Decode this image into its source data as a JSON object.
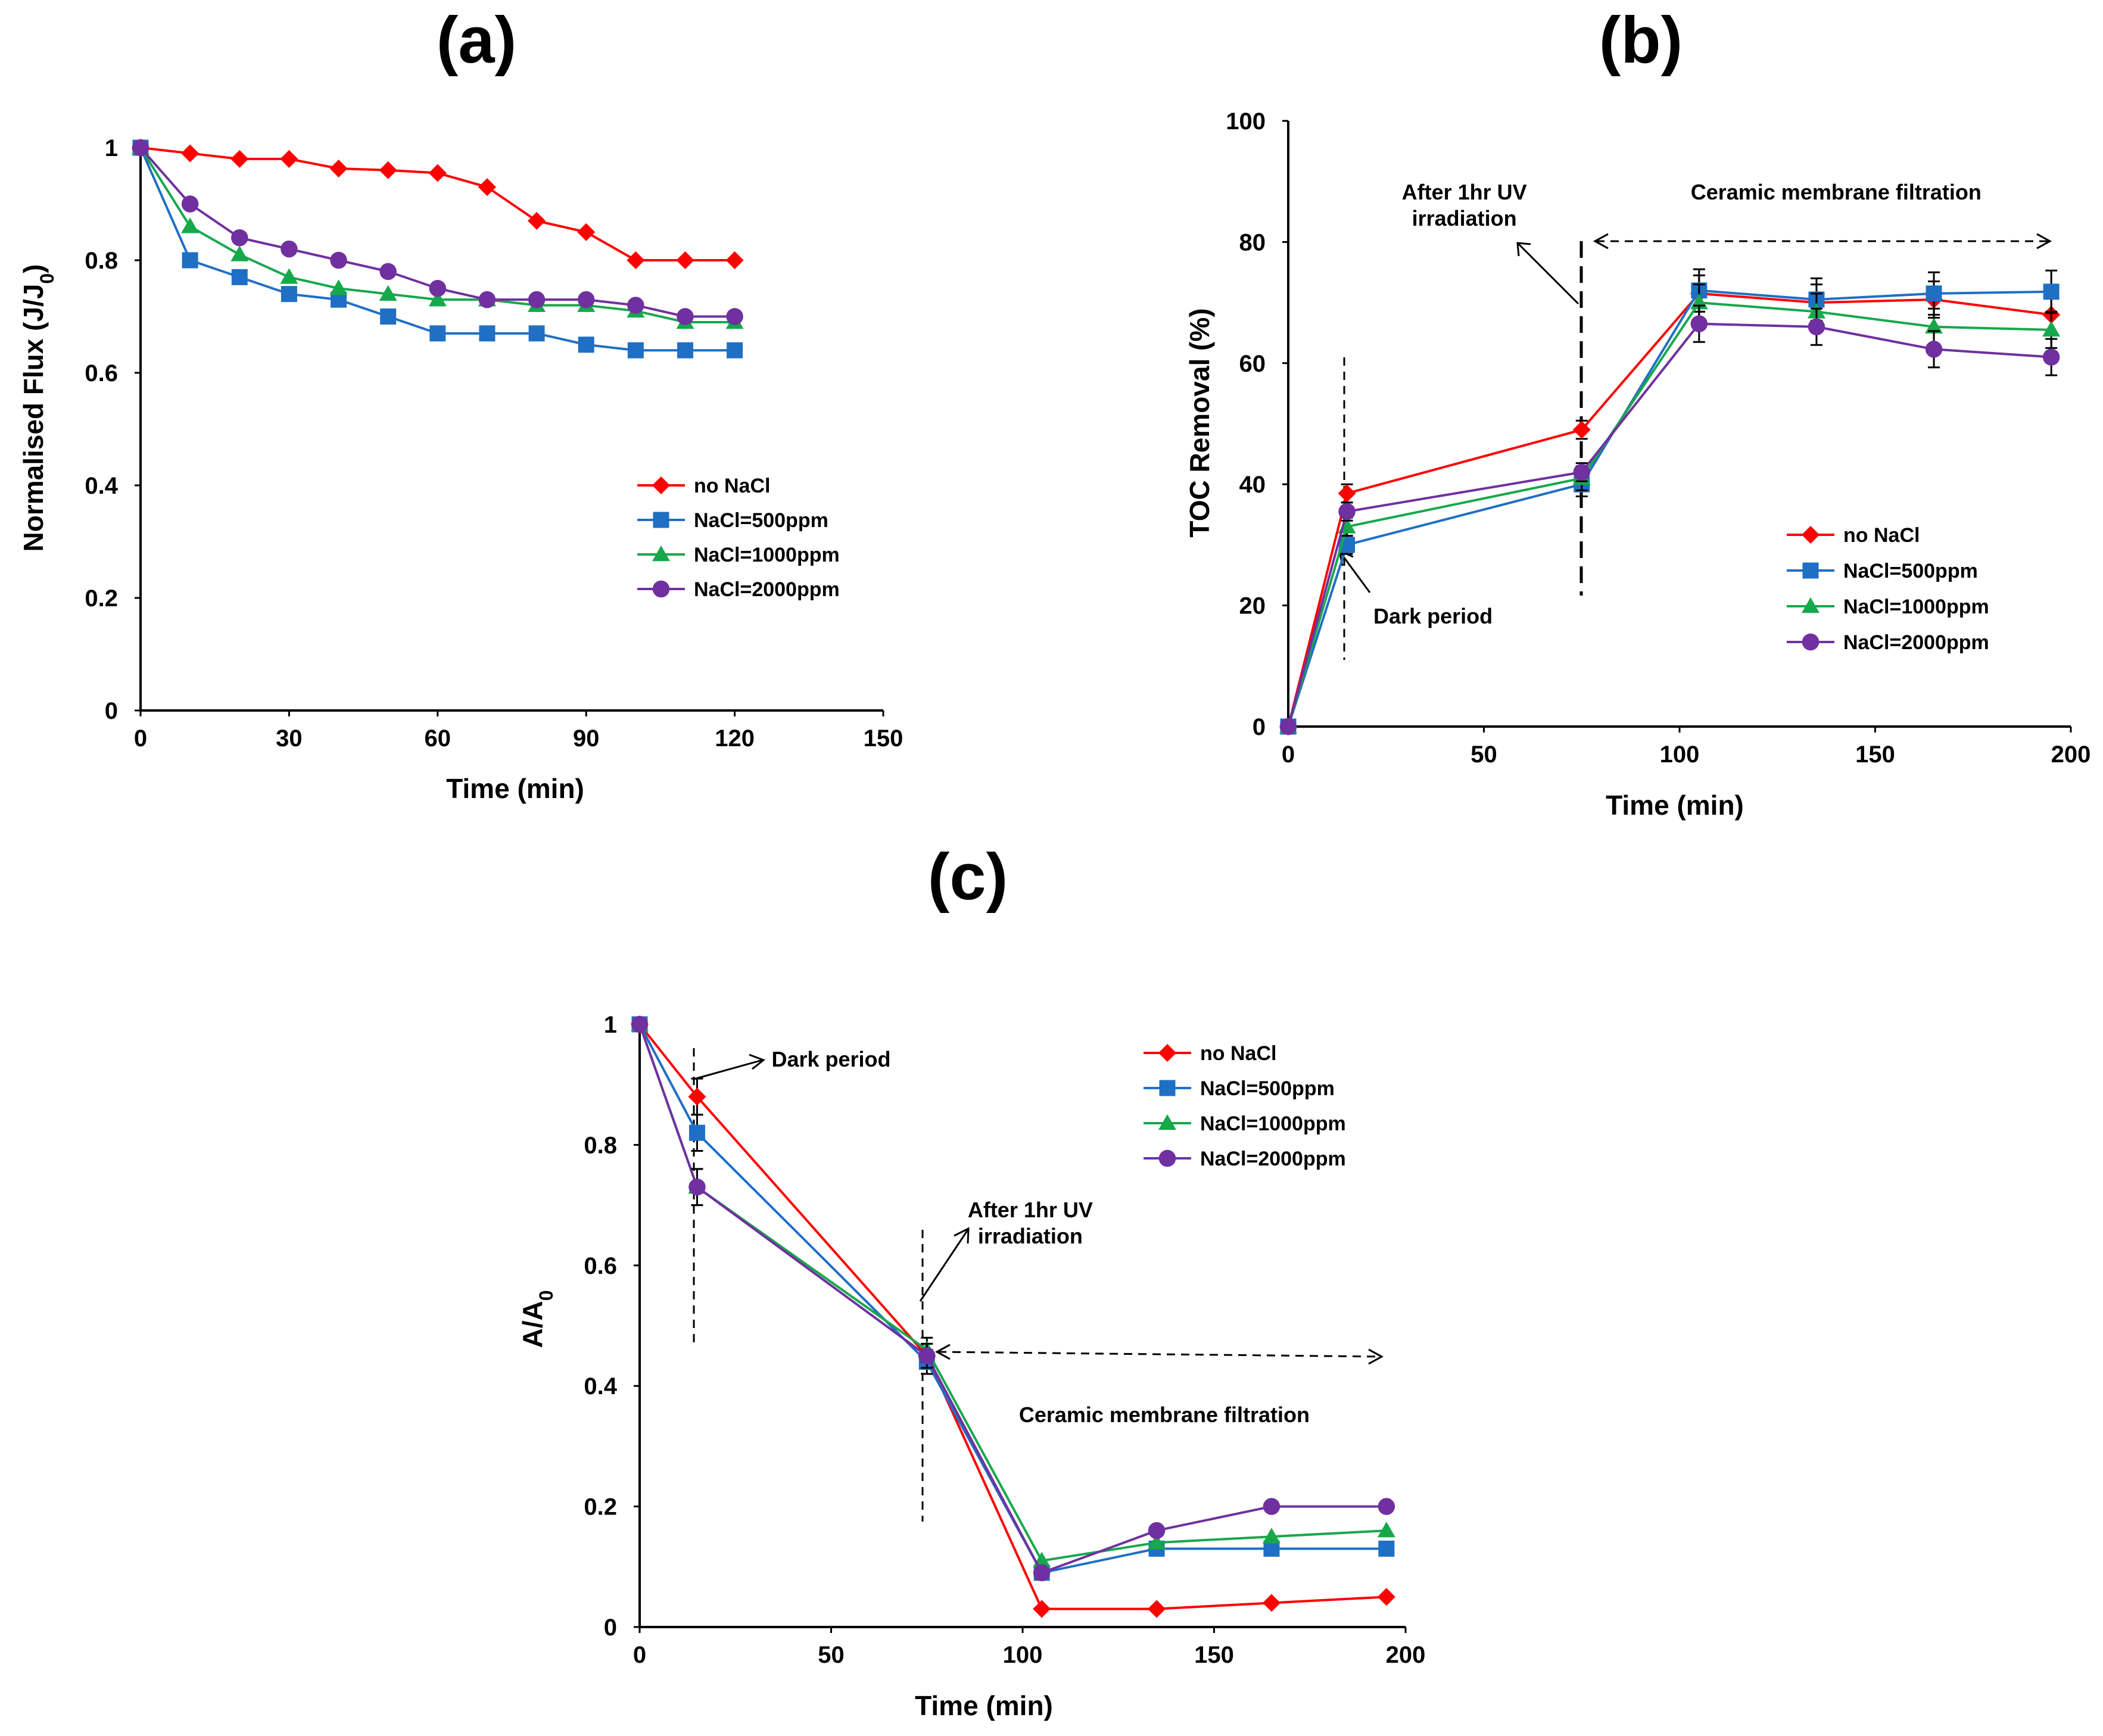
{
  "colors": {
    "no_nacl": "#ff0000",
    "nacl_500": "#1f6fc4",
    "nacl_1000": "#16a84b",
    "nacl_2000": "#7030a0",
    "axis": "#000000"
  },
  "chart_data": [
    {
      "panel": "(a)",
      "type": "line",
      "xlabel": "Time (min)",
      "ylabel": "Normalised Flux (J/J0)",
      "ylabel_main": "Normalised Flux (J/J",
      "ylabel_sub": "0",
      "ylabel_tail": ")",
      "xlim": [
        0,
        150
      ],
      "ylim": [
        0,
        1
      ],
      "xticks": [
        0,
        30,
        60,
        90,
        120,
        150
      ],
      "yticks": [
        0,
        0.2,
        0.4,
        0.6,
        0.8,
        1
      ],
      "legend": "right-middle",
      "x": [
        0,
        10,
        20,
        30,
        40,
        50,
        60,
        70,
        80,
        90,
        100,
        110,
        120
      ],
      "series": [
        {
          "name": "no NaCl",
          "color_key": "no_nacl",
          "marker": "diamond",
          "values": [
            1,
            0.99,
            0.98,
            0.98,
            0.963,
            0.96,
            0.955,
            0.93,
            0.87,
            0.85,
            0.8,
            0.8,
            0.8
          ]
        },
        {
          "name": "NaCl=500ppm",
          "color_key": "nacl_500",
          "marker": "square",
          "values": [
            1,
            0.8,
            0.77,
            0.74,
            0.73,
            0.7,
            0.67,
            0.67,
            0.67,
            0.65,
            0.64,
            0.64,
            0.64
          ]
        },
        {
          "name": "NaCl=1000ppm",
          "color_key": "nacl_1000",
          "marker": "triangle",
          "values": [
            1,
            0.86,
            0.81,
            0.77,
            0.75,
            0.74,
            0.73,
            0.73,
            0.72,
            0.72,
            0.71,
            0.69,
            0.69
          ]
        },
        {
          "name": "NaCl=2000ppm",
          "color_key": "nacl_2000",
          "marker": "circle",
          "values": [
            1,
            0.9,
            0.84,
            0.82,
            0.8,
            0.78,
            0.75,
            0.73,
            0.73,
            0.73,
            0.72,
            0.7,
            0.7
          ]
        }
      ],
      "annotations": []
    },
    {
      "panel": "(b)",
      "type": "line",
      "xlabel": "Time (min)",
      "ylabel": "TOC Removal (%)",
      "xlim": [
        0,
        200
      ],
      "ylim": [
        0,
        100
      ],
      "xticks": [
        0,
        50,
        100,
        150,
        200
      ],
      "yticks": [
        0,
        20,
        40,
        60,
        80,
        100
      ],
      "legend": "bottom-right",
      "x": [
        0,
        15,
        75,
        105,
        135,
        165,
        195
      ],
      "series": [
        {
          "name": "no NaCl",
          "color_key": "no_nacl",
          "marker": "diamond",
          "values": [
            0,
            38.5,
            49,
            71.5,
            70,
            70.5,
            68
          ],
          "errors": [
            0,
            1.5,
            1.5,
            3,
            3,
            3,
            3
          ]
        },
        {
          "name": "NaCl=500ppm",
          "color_key": "nacl_500",
          "marker": "square",
          "values": [
            0,
            30,
            40,
            72,
            70.5,
            71.5,
            71.8
          ],
          "errors": [
            0,
            1.5,
            2,
            3.5,
            3.5,
            3.5,
            3.5
          ]
        },
        {
          "name": "NaCl=1000ppm",
          "color_key": "nacl_1000",
          "marker": "triangle",
          "values": [
            0,
            33,
            41,
            70,
            68.5,
            66,
            65.5
          ],
          "errors": [
            0,
            1.5,
            2,
            3,
            3,
            3,
            3
          ]
        },
        {
          "name": "NaCl=2000ppm",
          "color_key": "nacl_2000",
          "marker": "circle",
          "values": [
            0,
            35.5,
            42,
            66.5,
            66,
            62.3,
            61
          ],
          "errors": [
            0,
            1.5,
            1.5,
            3,
            3,
            3,
            3
          ]
        }
      ],
      "annotations": [
        {
          "lines": [
            "After 1hr UV",
            "irradiation"
          ],
          "x": 45,
          "y": 87
        },
        {
          "lines": [
            "Ceramic membrane filtration"
          ],
          "x": 140,
          "y": 87
        },
        {
          "lines": [
            "Dark period"
          ],
          "x": 37,
          "y": 17
        }
      ]
    },
    {
      "panel": "(c)",
      "type": "line",
      "xlabel": "Time (min)",
      "ylabel": "A/A0",
      "ylabel_main": "A/A",
      "ylabel_sub": "0",
      "ylabel_tail": "",
      "xlim": [
        0,
        200
      ],
      "ylim": [
        0,
        1
      ],
      "xticks": [
        0,
        50,
        100,
        150,
        200
      ],
      "yticks": [
        0,
        0.2,
        0.4,
        0.6,
        0.8,
        1
      ],
      "legend": "top-right",
      "x": [
        0,
        15,
        75,
        105,
        135,
        165,
        195
      ],
      "series": [
        {
          "name": "no NaCl",
          "color_key": "no_nacl",
          "marker": "diamond",
          "values": [
            1,
            0.88,
            0.45,
            0.03,
            0.03,
            0.04,
            0.05
          ],
          "errors": [
            0,
            0.03,
            0.02,
            0,
            0,
            0,
            0
          ]
        },
        {
          "name": "NaCl=500ppm",
          "color_key": "nacl_500",
          "marker": "square",
          "values": [
            1,
            0.82,
            0.44,
            0.09,
            0.13,
            0.13,
            0.13
          ],
          "errors": [
            0,
            0.03,
            0.02,
            0,
            0,
            0,
            0
          ]
        },
        {
          "name": "NaCl=1000ppm",
          "color_key": "nacl_1000",
          "marker": "triangle",
          "values": [
            1,
            0.73,
            0.46,
            0.11,
            0.14,
            0.15,
            0.16
          ],
          "errors": [
            0,
            0.03,
            0.02,
            0,
            0,
            0,
            0
          ]
        },
        {
          "name": "NaCl=2000ppm",
          "color_key": "nacl_2000",
          "marker": "circle",
          "values": [
            1,
            0.73,
            0.45,
            0.09,
            0.16,
            0.2,
            0.2
          ],
          "errors": [
            0,
            0.03,
            0.02,
            0,
            0,
            0,
            0
          ]
        }
      ],
      "annotations": [
        {
          "lines": [
            "Dark period"
          ],
          "x": 50,
          "y": 0.93
        },
        {
          "lines": [
            "After 1hr UV",
            "irradiation"
          ],
          "x": 102,
          "y": 0.68
        },
        {
          "lines": [
            "Ceramic membrane filtration"
          ],
          "x": 137,
          "y": 0.34
        }
      ]
    }
  ]
}
